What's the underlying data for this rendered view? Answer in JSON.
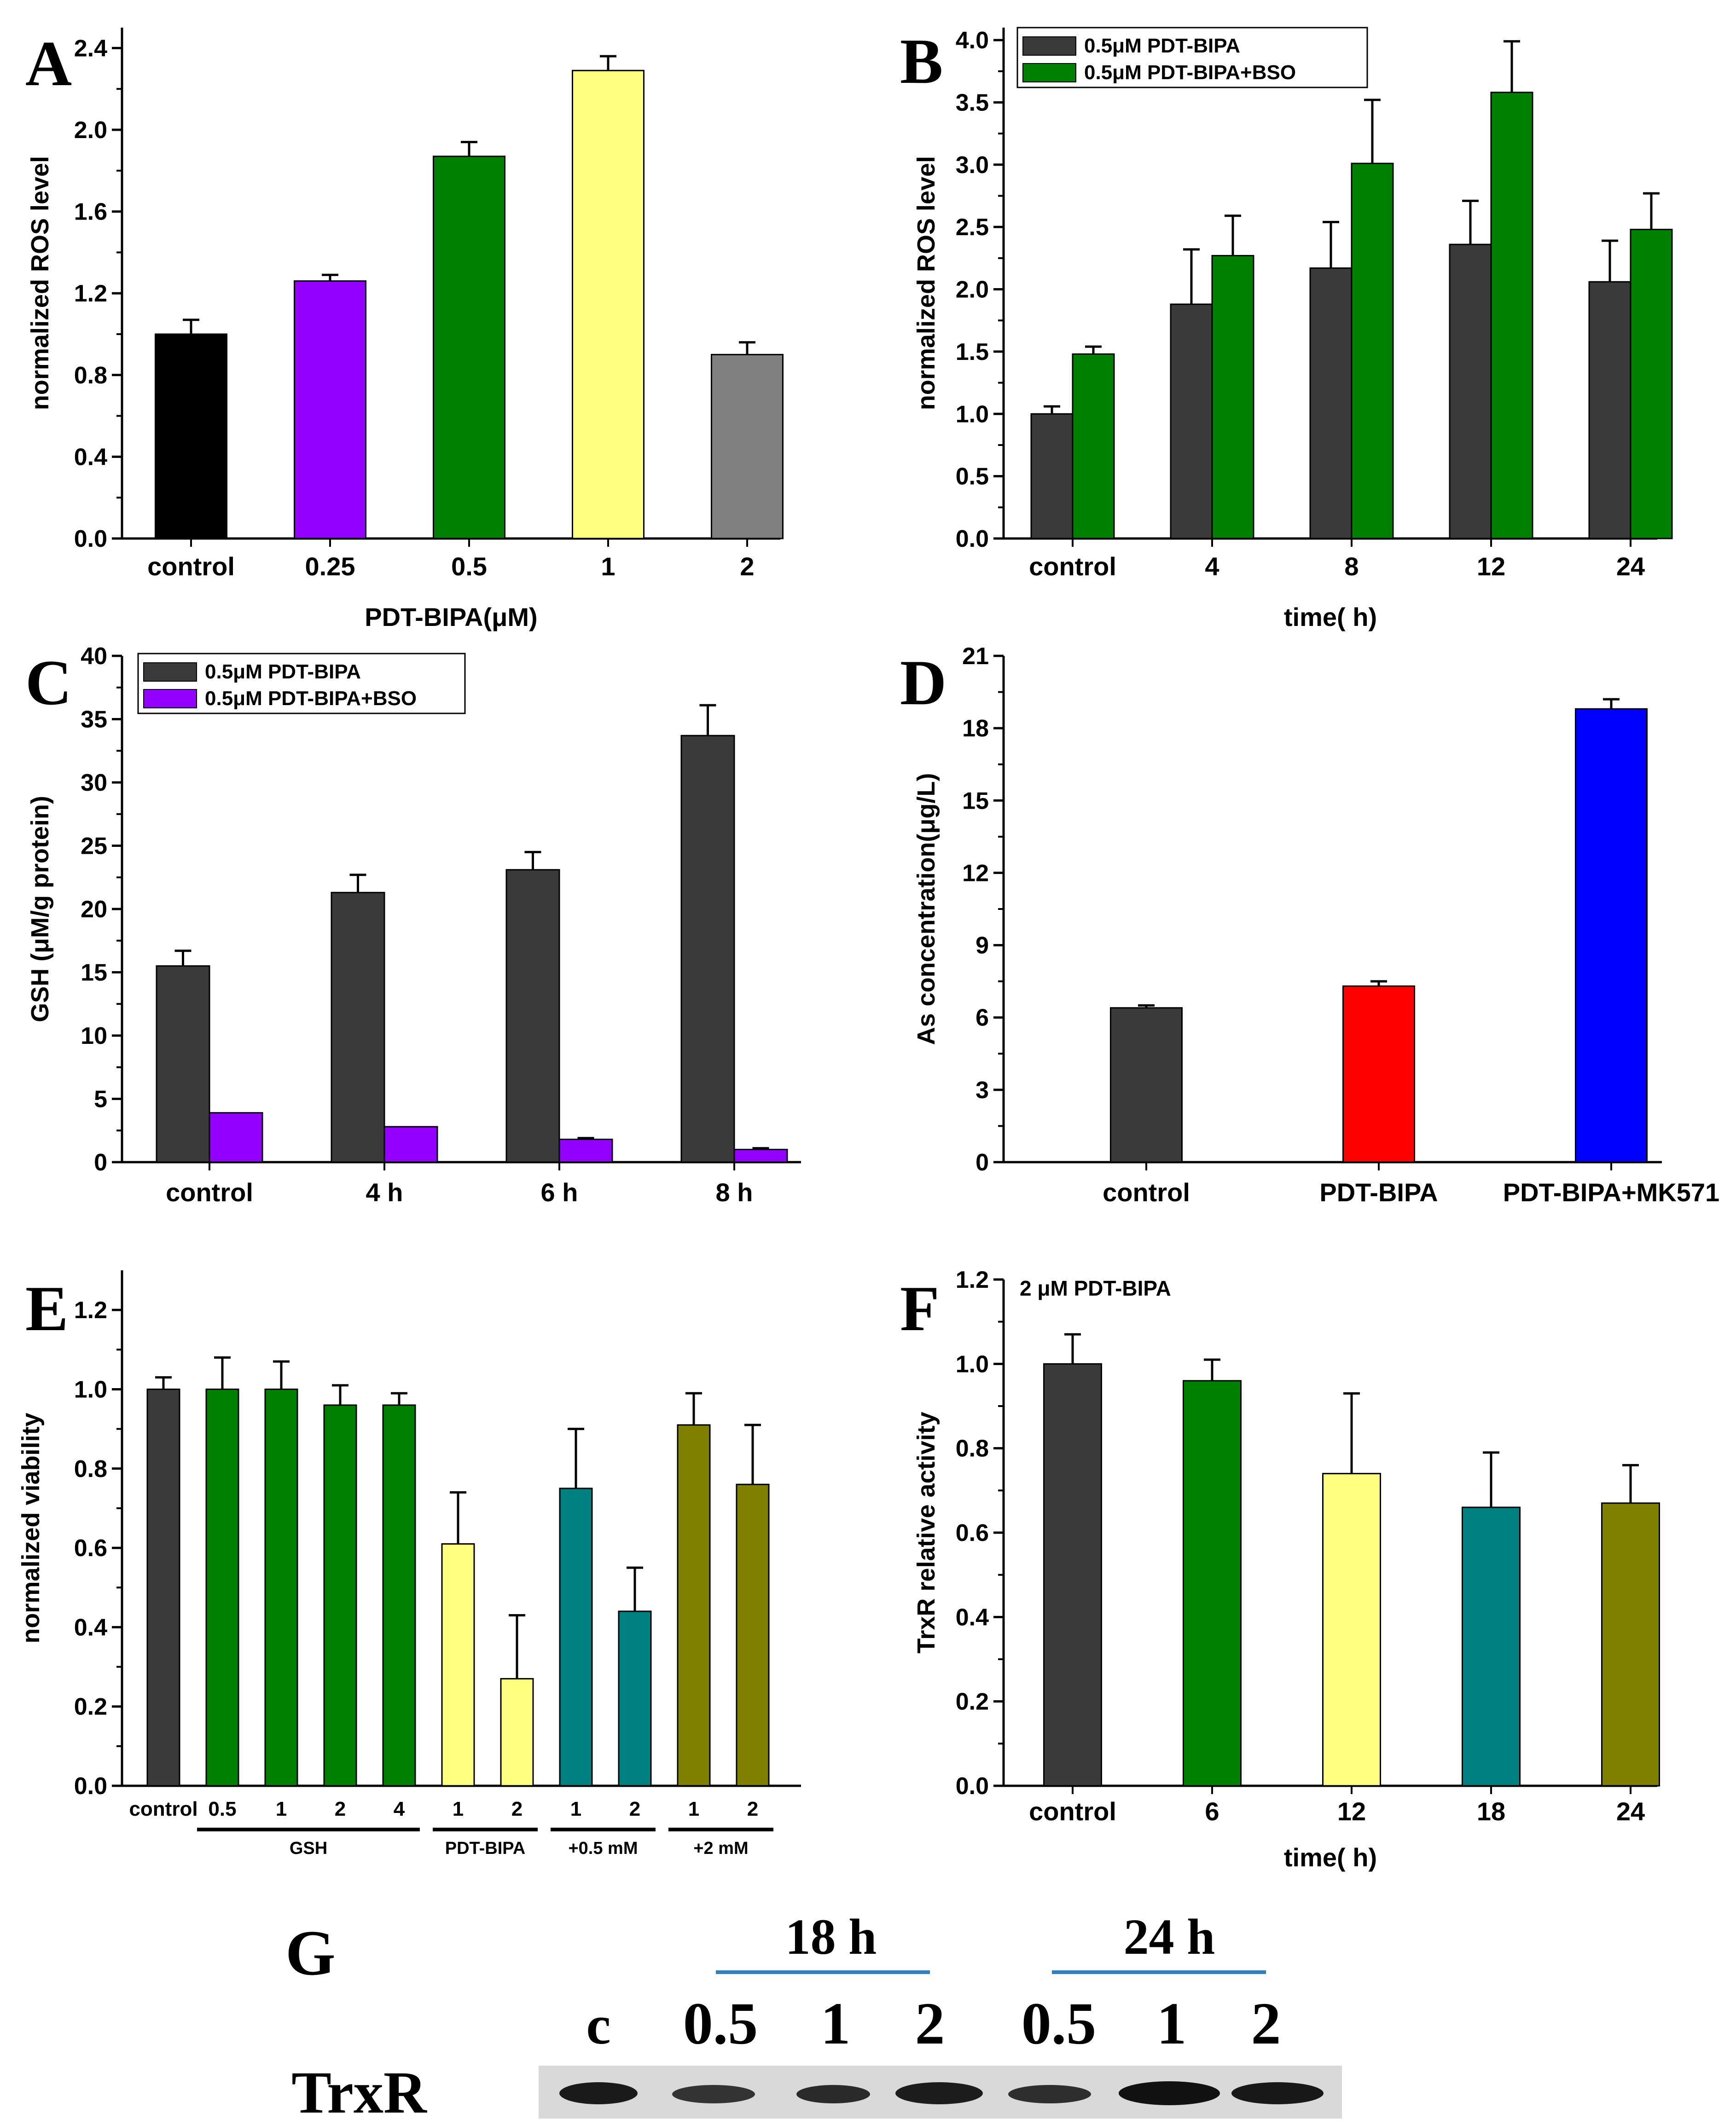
{
  "colors": {
    "black": "#000000",
    "dark_gray": "#3a3a3a",
    "purple": "#9400ff",
    "green": "#008000",
    "yellow": "#ffff80",
    "gray": "#808080",
    "red": "#ff0000",
    "blue": "#0000ff",
    "teal": "#008080",
    "olive": "#808000",
    "blot_line": "#2f7fc1"
  },
  "chart_data": [
    {
      "panel": "A",
      "type": "bar",
      "title": "",
      "xlabel": "PDT-BIPA(μM)",
      "ylabel": "normalized ROS level",
      "ylim": [
        0,
        2.5
      ],
      "yticks": [
        "0.0",
        "0.4",
        "0.8",
        "1.2",
        "1.6",
        "2.0",
        "2.4"
      ],
      "categories": [
        "control",
        "0.25",
        "0.5",
        "1",
        "2"
      ],
      "values": [
        1.0,
        1.26,
        1.87,
        2.29,
        0.9
      ],
      "errors": [
        0.07,
        0.03,
        0.07,
        0.07,
        0.06
      ],
      "bar_colors": [
        "black",
        "purple",
        "green",
        "yellow",
        "gray"
      ]
    },
    {
      "panel": "B",
      "type": "bar",
      "title": "",
      "xlabel": "time( h)",
      "ylabel": "normalized ROS level",
      "ylim": [
        0,
        4.1
      ],
      "yticks": [
        "0.0",
        "0.5",
        "1.0",
        "1.5",
        "2.0",
        "2.5",
        "3.0",
        "3.5",
        "4.0"
      ],
      "categories": [
        "control",
        "4",
        "8",
        "12",
        "24"
      ],
      "series": [
        {
          "name": "0.5μM PDT-BIPA",
          "color": "dark_gray",
          "values": [
            1.0,
            1.88,
            2.17,
            2.36,
            2.06
          ],
          "errors": [
            0.06,
            0.44,
            0.37,
            0.35,
            0.33
          ]
        },
        {
          "name": "0.5μM PDT-BIPA+BSO",
          "color": "green",
          "values": [
            1.48,
            2.27,
            3.01,
            3.58,
            2.48
          ],
          "errors": [
            0.06,
            0.32,
            0.51,
            0.41,
            0.29
          ]
        }
      ],
      "legend": "top-left"
    },
    {
      "panel": "C",
      "type": "bar",
      "title": "",
      "xlabel": "",
      "ylabel": "GSH (μM/g protein)",
      "ylim": [
        0,
        40
      ],
      "yticks": [
        "0",
        "5",
        "10",
        "15",
        "20",
        "25",
        "30",
        "35",
        "40"
      ],
      "categories": [
        "control",
        "4 h",
        "6 h",
        "8 h"
      ],
      "series": [
        {
          "name": "0.5μM PDT-BIPA",
          "color": "dark_gray",
          "values": [
            15.5,
            21.3,
            23.1,
            33.7
          ],
          "errors": [
            1.2,
            1.4,
            1.4,
            2.4
          ]
        },
        {
          "name": "0.5μM PDT-BIPA+BSO",
          "color": "purple",
          "values": [
            3.9,
            2.8,
            1.8,
            1.0
          ],
          "errors": [
            0,
            0,
            0.1,
            0.1
          ]
        }
      ],
      "legend": "top-left"
    },
    {
      "panel": "D",
      "type": "bar",
      "title": "",
      "xlabel": "",
      "ylabel": "As concentration(μg/L)",
      "ylim": [
        0,
        21
      ],
      "yticks": [
        "0",
        "3",
        "6",
        "9",
        "12",
        "15",
        "18",
        "21"
      ],
      "categories": [
        "control",
        "PDT-BIPA",
        "PDT-BIPA+MK571"
      ],
      "values": [
        6.4,
        7.3,
        18.8
      ],
      "errors": [
        0.1,
        0.2,
        0.4
      ],
      "bar_colors": [
        "dark_gray",
        "red",
        "blue"
      ]
    },
    {
      "panel": "E",
      "type": "bar",
      "title": "",
      "xlabel": "",
      "ylabel": "normalized viability",
      "ylim": [
        0,
        1.3
      ],
      "yticks": [
        "0.0",
        "0.2",
        "0.4",
        "0.6",
        "0.8",
        "1.0",
        "1.2"
      ],
      "categories": [
        "control",
        "0.5",
        "1",
        "2",
        "4",
        "1",
        "2",
        "1",
        "2",
        "1",
        "2"
      ],
      "values": [
        1.0,
        1.0,
        1.0,
        0.96,
        0.96,
        0.61,
        0.27,
        0.75,
        0.44,
        0.91,
        0.76
      ],
      "errors": [
        0.03,
        0.08,
        0.07,
        0.05,
        0.03,
        0.13,
        0.16,
        0.15,
        0.11,
        0.08,
        0.15
      ],
      "bar_colors": [
        "dark_gray",
        "green",
        "green",
        "green",
        "green",
        "yellow",
        "yellow",
        "teal",
        "teal",
        "olive",
        "olive"
      ],
      "group_labels": [
        "GSH",
        "PDT-BIPA",
        "+0.5 mM",
        "+2 mM"
      ]
    },
    {
      "panel": "F",
      "type": "bar",
      "title": "",
      "xlabel": "time( h)",
      "ylabel": "TrxR relative activity",
      "ylim": [
        0,
        1.2
      ],
      "yticks": [
        "0.0",
        "0.2",
        "0.4",
        "0.6",
        "0.8",
        "1.0",
        "1.2"
      ],
      "categories": [
        "control",
        "6",
        "12",
        "18",
        "24"
      ],
      "values": [
        1.0,
        0.96,
        0.74,
        0.66,
        0.67
      ],
      "errors": [
        0.07,
        0.05,
        0.19,
        0.13,
        0.09
      ],
      "bar_colors": [
        "dark_gray",
        "green",
        "yellow",
        "teal",
        "olive"
      ],
      "annotation": "2 μM PDT-BIPA"
    }
  ],
  "blot": {
    "panel": "G",
    "row_label": "TrxR",
    "group_labels": [
      "18 h",
      "24 h"
    ],
    "lane_labels": [
      "c",
      "0.5",
      "1",
      "2",
      "0.5",
      "1",
      "2"
    ]
  }
}
